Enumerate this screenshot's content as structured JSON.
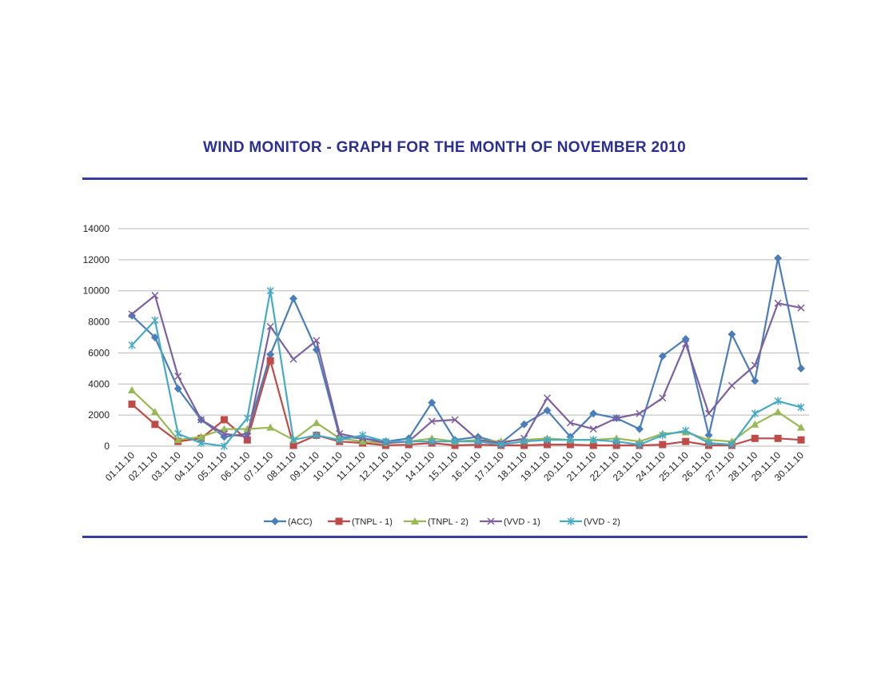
{
  "chart_data": {
    "type": "line",
    "title": "WIND MONITOR -  GRAPH FOR THE MONTH OF NOVEMBER 2010",
    "xlabel": "",
    "ylabel": "",
    "ylim": [
      0,
      14000
    ],
    "yticks": [
      0,
      2000,
      4000,
      6000,
      8000,
      10000,
      12000,
      14000
    ],
    "grid": true,
    "legend_position": "bottom",
    "categories": [
      "01.11.10",
      "02.11.10",
      "03.11.10",
      "04.11.10",
      "05.11.10",
      "06.11.10",
      "07.11.10",
      "08.11.10",
      "09.11.10",
      "10.11.10",
      "11.11.10",
      "12.11.10",
      "13.11.10",
      "14.11.10",
      "15.11.10",
      "16.11.10",
      "17.11.10",
      "18.11.10",
      "19.11.10",
      "20.11.10",
      "21.11.10",
      "22.11.10",
      "23.11.10",
      "24.11.10",
      "25.11.10",
      "26.11.10",
      "27.11.10",
      "28.11.10",
      "29.11.10",
      "30.11.10"
    ],
    "series": [
      {
        "name": "(ACC)",
        "color": "#4a7ebb",
        "marker": "diamond",
        "values": [
          8400,
          7000,
          3700,
          1700,
          600,
          800,
          5900,
          9500,
          6200,
          600,
          500,
          300,
          500,
          2800,
          400,
          600,
          200,
          1400,
          2300,
          600,
          2100,
          1800,
          1100,
          5800,
          6900,
          700,
          7200,
          4200,
          12100,
          5000
        ]
      },
      {
        "name": "(TNPL - 1)",
        "color": "#be4b48",
        "marker": "square",
        "values": [
          2700,
          1400,
          300,
          500,
          1700,
          400,
          5500,
          50,
          700,
          300,
          200,
          50,
          100,
          200,
          50,
          100,
          50,
          50,
          100,
          100,
          50,
          50,
          50,
          100,
          300,
          50,
          50,
          500,
          500,
          400
        ]
      },
      {
        "name": "(TNPL - 2)",
        "color": "#98b954",
        "marker": "triangle",
        "values": [
          3600,
          2200,
          400,
          600,
          1100,
          1100,
          1200,
          400,
          1500,
          500,
          300,
          200,
          300,
          500,
          300,
          400,
          300,
          400,
          500,
          400,
          400,
          500,
          300,
          800,
          900,
          400,
          300,
          1400,
          2200,
          1200
        ]
      },
      {
        "name": "(VVD - 1)",
        "color": "#7d60a0",
        "marker": "x",
        "values": [
          8500,
          9700,
          4500,
          1700,
          800,
          600,
          7700,
          5600,
          6800,
          800,
          500,
          200,
          300,
          1600,
          1700,
          400,
          200,
          500,
          3100,
          1500,
          1100,
          1800,
          2100,
          3100,
          6600,
          2100,
          3900,
          5200,
          9200,
          8900
        ]
      },
      {
        "name": "(VVD - 2)",
        "color": "#46aac5",
        "marker": "star",
        "values": [
          6500,
          8100,
          800,
          200,
          0,
          1800,
          10000,
          400,
          700,
          400,
          700,
          300,
          300,
          300,
          300,
          300,
          100,
          300,
          400,
          400,
          400,
          300,
          100,
          700,
          1000,
          200,
          100,
          2100,
          2900,
          2500
        ]
      }
    ]
  }
}
